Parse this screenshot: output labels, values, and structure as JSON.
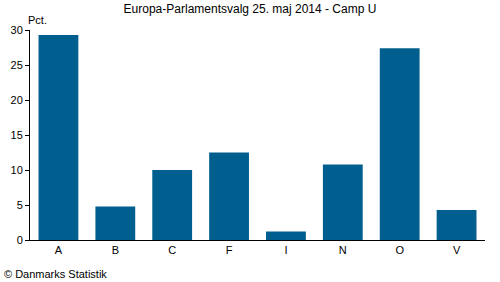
{
  "chart_data": {
    "type": "bar",
    "title": "Europa-Parlamentsvalg 25. maj 2014 - Camp U",
    "ylabel": "Pct.",
    "annotations": [
      "© Danmarks Statistik"
    ],
    "categories": [
      "A",
      "B",
      "C",
      "F",
      "I",
      "N",
      "O",
      "V"
    ],
    "values": [
      29.3,
      4.8,
      10.0,
      12.5,
      1.2,
      10.8,
      27.4,
      4.3
    ],
    "color": "#005f8e",
    "ylim": [
      0,
      30
    ],
    "yticks": [
      0,
      5,
      10,
      15,
      20,
      25,
      30
    ],
    "grid": false
  }
}
